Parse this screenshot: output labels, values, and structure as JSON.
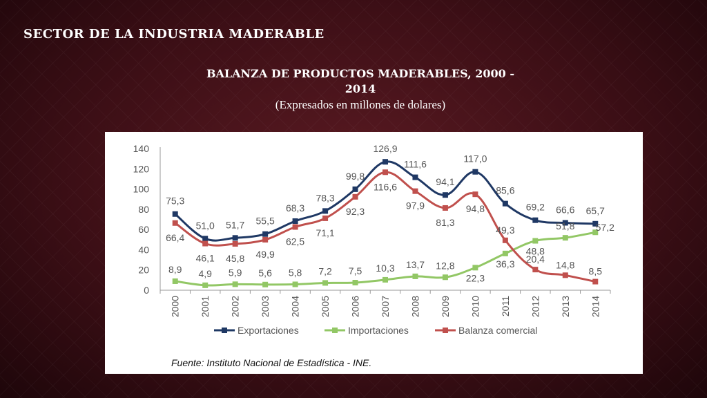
{
  "slide": {
    "section_title": "SECTOR DE LA INDUSTRIA MADERABLE",
    "chart_title_line1": "BALANZA DE PRODUCTOS MADERABLES, 2000 -",
    "chart_title_line2": "2014",
    "chart_subtitle": "(Expresados en millones de dolares)",
    "source": "Fuente: Instituto Nacional de Estadística - INE."
  },
  "chart_data": {
    "type": "line",
    "x": [
      "2000",
      "2001",
      "2002",
      "2003",
      "2004",
      "2005",
      "2006",
      "2007",
      "2008",
      "2009",
      "2010",
      "2011",
      "2012",
      "2013",
      "2014"
    ],
    "ylim": [
      0,
      140
    ],
    "yticks": [
      0,
      20,
      40,
      60,
      80,
      100,
      120,
      140
    ],
    "grid": false,
    "legend_position": "bottom",
    "series": [
      {
        "name": "Exportaciones",
        "color": "#1f3864",
        "values": [
          75.3,
          51.0,
          51.7,
          55.5,
          68.3,
          78.3,
          99.8,
          126.9,
          111.6,
          94.1,
          117.0,
          85.6,
          69.2,
          66.6,
          65.7
        ],
        "labels": [
          "75,3",
          "51,0",
          "51,7",
          "55,5",
          "68,3",
          "78,3",
          "99,8",
          "126,9",
          "111,6",
          "94,1",
          "117,0",
          "85,6",
          "69,2",
          "66,6",
          "65,7"
        ]
      },
      {
        "name": "Importaciones",
        "color": "#92c765",
        "values": [
          8.9,
          4.9,
          5.9,
          5.6,
          5.8,
          7.2,
          7.5,
          10.3,
          13.7,
          12.8,
          22.3,
          36.3,
          48.8,
          51.8,
          57.2
        ],
        "labels": [
          "8,9",
          "4,9",
          "5,9",
          "5,6",
          "5,8",
          "7,2",
          "7,5",
          "10,3",
          "13,7",
          "12,8",
          "22,3",
          "36,3",
          "48,8",
          "51,8",
          "57,2"
        ]
      },
      {
        "name": "Balanza comercial",
        "color": "#c0504d",
        "values": [
          66.4,
          46.1,
          45.8,
          49.9,
          62.5,
          71.1,
          92.3,
          116.6,
          97.9,
          81.3,
          94.8,
          49.3,
          20.4,
          14.8,
          8.5
        ],
        "labels": [
          "66,4",
          "46,1",
          "45,8",
          "49,9",
          "62,5",
          "71,1",
          "92,3",
          "116,6",
          "97,9",
          "81,3",
          "94,8",
          "49,3",
          "20,4",
          "14,8",
          "8,5"
        ]
      }
    ]
  }
}
